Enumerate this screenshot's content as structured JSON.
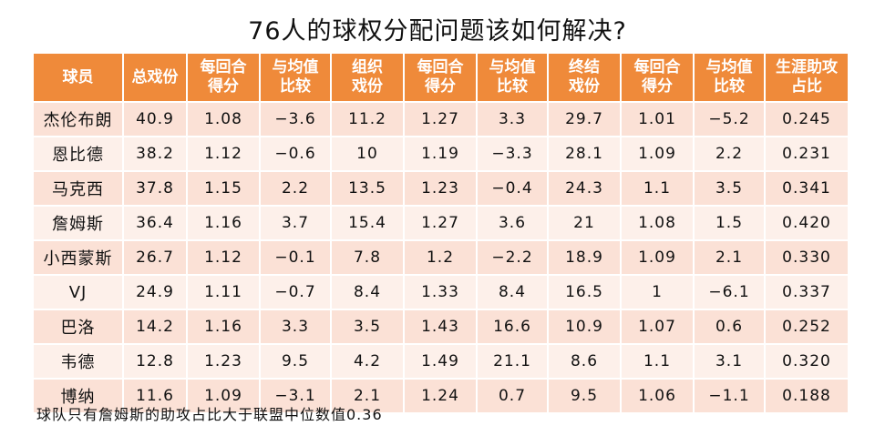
{
  "title": "76人的球权分配问题该如何解决?",
  "headers": [
    "球员",
    "总戏份",
    "每回合\n得分",
    "与均值\n比较",
    "组织\n戏份",
    "每回合\n得分",
    "与均值\n比较",
    "终结\n戏份",
    "每回合\n得分",
    "与均值\n比较",
    "生涯助攻\n占比"
  ],
  "colors": {
    "header_bg": "#ef8a3a",
    "row_odd": "#fbe1d6",
    "row_even": "#fdf0ea",
    "red": "#e8262b",
    "green": "#1fa33a"
  },
  "rows": [
    {
      "cells": [
        "杰伦布朗",
        "40.9",
        "1.08",
        "−3.6",
        "11.2",
        "1.27",
        "3.3",
        "29.7",
        "1.01",
        "−5.2",
        "0.245"
      ],
      "colors": [
        "black",
        "red",
        "black",
        "green",
        "black",
        "black",
        "red",
        "black",
        "black",
        "green",
        "green"
      ]
    },
    {
      "cells": [
        "恩比德",
        "38.2",
        "1.12",
        "−0.6",
        "10",
        "1.19",
        "−3.3",
        "28.1",
        "1.09",
        "2.2",
        "0.231"
      ],
      "colors": [
        "black",
        "red",
        "black",
        "green",
        "black",
        "black",
        "green",
        "black",
        "black",
        "red",
        "green"
      ]
    },
    {
      "cells": [
        "马克西",
        "37.8",
        "1.15",
        "2.2",
        "13.5",
        "1.23",
        "−0.4",
        "24.3",
        "1.1",
        "3.5",
        "0.341"
      ],
      "colors": [
        "black",
        "red",
        "black",
        "red",
        "black",
        "black",
        "green",
        "black",
        "black",
        "red",
        "black"
      ]
    },
    {
      "cells": [
        "詹姆斯",
        "36.4",
        "1.16",
        "3.7",
        "15.4",
        "1.27",
        "3.6",
        "21",
        "1.08",
        "1.5",
        "0.420"
      ],
      "colors": [
        "black",
        "red",
        "black",
        "red",
        "black",
        "black",
        "red",
        "black",
        "black",
        "red",
        "red"
      ]
    },
    {
      "cells": [
        "小西蒙斯",
        "26.7",
        "1.12",
        "−0.1",
        "7.8",
        "1.2",
        "−2.2",
        "18.9",
        "1.09",
        "2.1",
        "0.330"
      ],
      "colors": [
        "black",
        "black",
        "black",
        "green",
        "black",
        "black",
        "green",
        "black",
        "black",
        "red",
        "black"
      ]
    },
    {
      "cells": [
        "VJ",
        "24.9",
        "1.11",
        "−0.7",
        "8.4",
        "1.33",
        "8.4",
        "16.5",
        "1",
        "−6.1",
        "0.337"
      ],
      "colors": [
        "black",
        "black",
        "black",
        "green",
        "black",
        "black",
        "red",
        "black",
        "black",
        "green",
        "black"
      ]
    },
    {
      "cells": [
        "巴洛",
        "14.2",
        "1.16",
        "3.3",
        "3.5",
        "1.43",
        "16.6",
        "10.9",
        "1.07",
        "0.6",
        "0.252"
      ],
      "colors": [
        "black",
        "green",
        "black",
        "red",
        "black",
        "black",
        "red",
        "black",
        "black",
        "black",
        "green"
      ]
    },
    {
      "cells": [
        "韦德",
        "12.8",
        "1.23",
        "9.5",
        "4.2",
        "1.49",
        "21.1",
        "8.6",
        "1.1",
        "3.1",
        "0.320"
      ],
      "colors": [
        "black",
        "green",
        "black",
        "red",
        "black",
        "black",
        "red",
        "black",
        "black",
        "red",
        "black"
      ]
    },
    {
      "cells": [
        "博纳",
        "11.6",
        "1.09",
        "−3.1",
        "2.1",
        "1.24",
        "0.7",
        "9.5",
        "1.06",
        "−1.1",
        "0.188"
      ],
      "colors": [
        "black",
        "green",
        "black",
        "green",
        "black",
        "black",
        "black",
        "black",
        "black",
        "green",
        "green"
      ]
    }
  ],
  "note": "球队只有詹姆斯的助攻占比大于联盟中位数值0.36"
}
